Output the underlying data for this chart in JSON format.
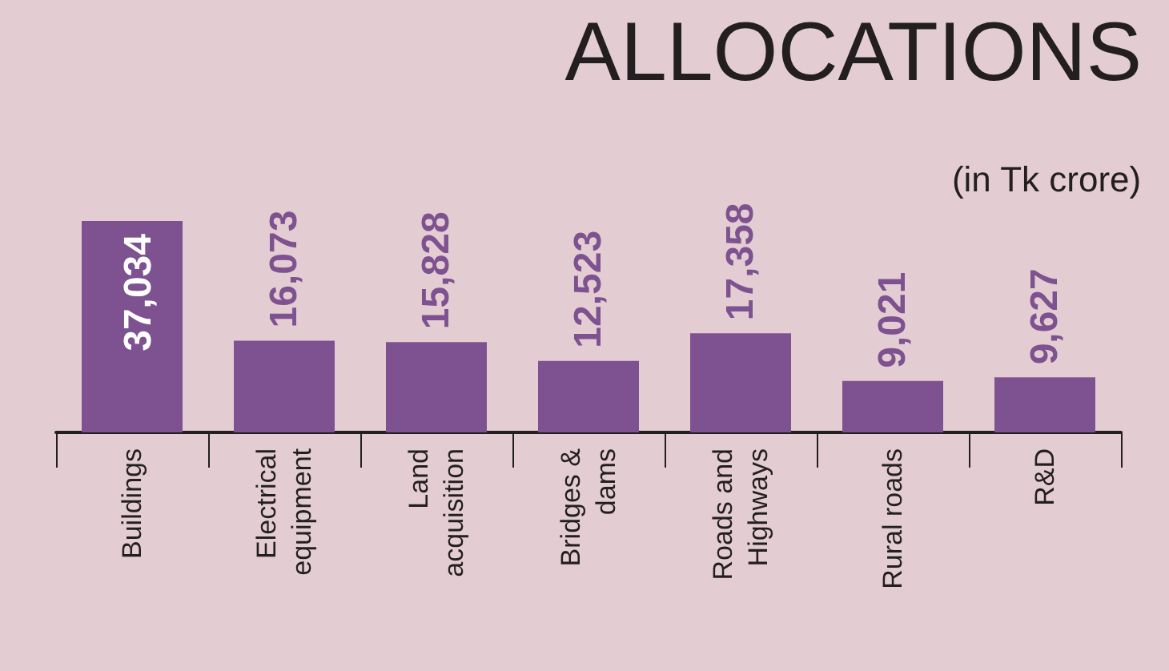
{
  "chart_data": {
    "type": "bar",
    "title": "ALLOCATIONS",
    "subtitle": "(in Tk crore)",
    "categories": [
      "Buildings",
      "Electrical equipment",
      "Land acquisition",
      "Bridges & dams",
      "Roads and Highways",
      "Rural roads",
      "R&D"
    ],
    "values": [
      37034,
      16073,
      15828,
      12523,
      17358,
      9021,
      9627
    ],
    "value_labels": [
      "37,034",
      "16,073",
      "15,828",
      "12,523",
      "17,358",
      "9,021",
      "9,627"
    ],
    "color": "#7e5290"
  }
}
